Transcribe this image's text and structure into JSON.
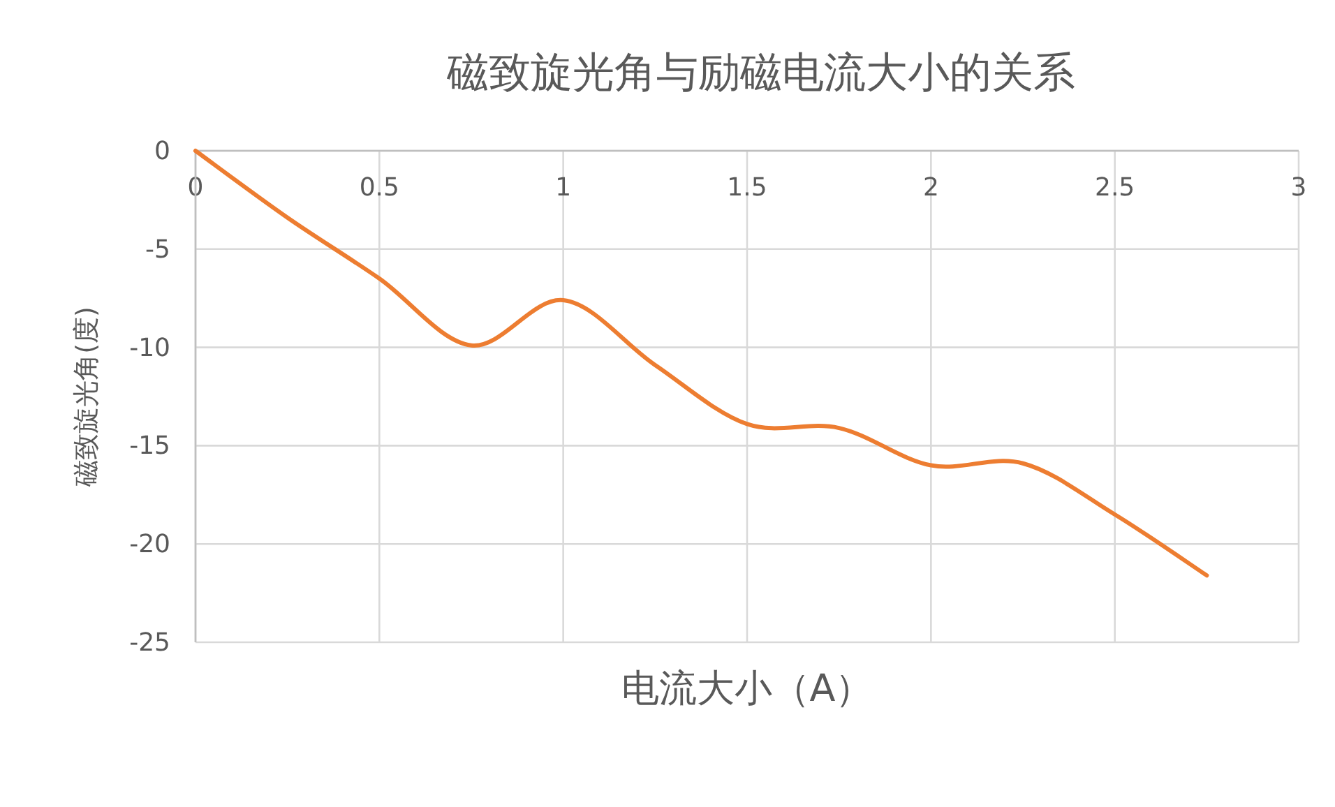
{
  "chart_data": {
    "type": "line",
    "title": "磁致旋光角与励磁电流大小的关系",
    "xlabel": "电流大小（A）",
    "ylabel": "磁致旋光角(度)",
    "x": [
      0,
      0.25,
      0.5,
      0.75,
      1,
      1.25,
      1.5,
      1.75,
      2,
      2.25,
      2.5,
      2.75
    ],
    "series": [
      {
        "color": "#ed7d31",
        "values": [
          0,
          -3.4,
          -6.5,
          -9.9,
          -7.6,
          -10.9,
          -13.9,
          -14.1,
          -16.0,
          -15.9,
          -18.5,
          -21.6
        ]
      }
    ],
    "xlim": [
      0,
      3
    ],
    "ylim": [
      -25,
      0
    ],
    "xticks": [
      0,
      0.5,
      1,
      1.5,
      2,
      2.5,
      3
    ],
    "yticks": [
      0,
      -5,
      -10,
      -15,
      -20,
      -25
    ],
    "grid": true,
    "marker": "none",
    "line_style": "solid"
  }
}
